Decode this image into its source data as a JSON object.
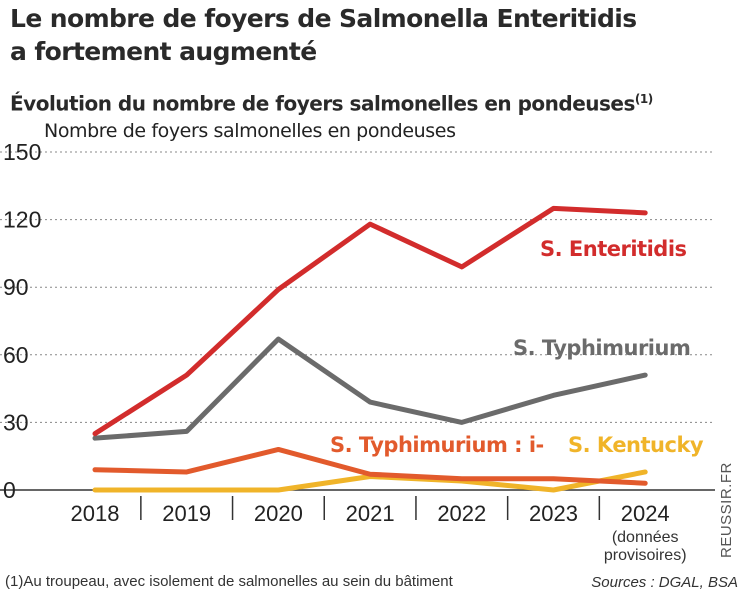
{
  "header": {
    "title_line1": "Le nombre de foyers de Salmonella Enteritidis",
    "title_line2": "a fortement augmenté",
    "subtitle": "Évolution du nombre de foyers salmonelles en pondeuses",
    "subtitle_note": "(1)"
  },
  "chart_data": {
    "type": "line",
    "ylabel": "Nombre de foyers salmonelles en pondeuses",
    "xlabel": "",
    "x": [
      "2018",
      "2019",
      "2020",
      "2021",
      "2022",
      "2023",
      "2024"
    ],
    "x_note": [
      "(données",
      "provisoires)"
    ],
    "ylim": [
      0,
      150
    ],
    "yticks": [
      0,
      30,
      60,
      90,
      120,
      150
    ],
    "grid": true,
    "series": [
      {
        "name": "S. Enteritidis",
        "color": "#d22c2c",
        "values": [
          25,
          51,
          89,
          118,
          99,
          125,
          123
        ]
      },
      {
        "name": "S. Typhimurium",
        "color": "#6b6b6b",
        "values": [
          23,
          26,
          67,
          39,
          30,
          42,
          51
        ]
      },
      {
        "name": "S. Typhimurium : i-",
        "color": "#e25a2c",
        "values": [
          9,
          8,
          18,
          7,
          5,
          5,
          3
        ]
      },
      {
        "name": "S. Kentucky",
        "color": "#f0b429",
        "values": [
          0,
          0,
          0,
          6,
          4,
          0,
          8
        ]
      }
    ]
  },
  "footer": {
    "footnote": "(1)Au troupeau, avec isolement de salmonelles au sein du bâtiment",
    "source": "Sources : DGAL, BSA",
    "watermark": "REUSSIR.FR"
  }
}
